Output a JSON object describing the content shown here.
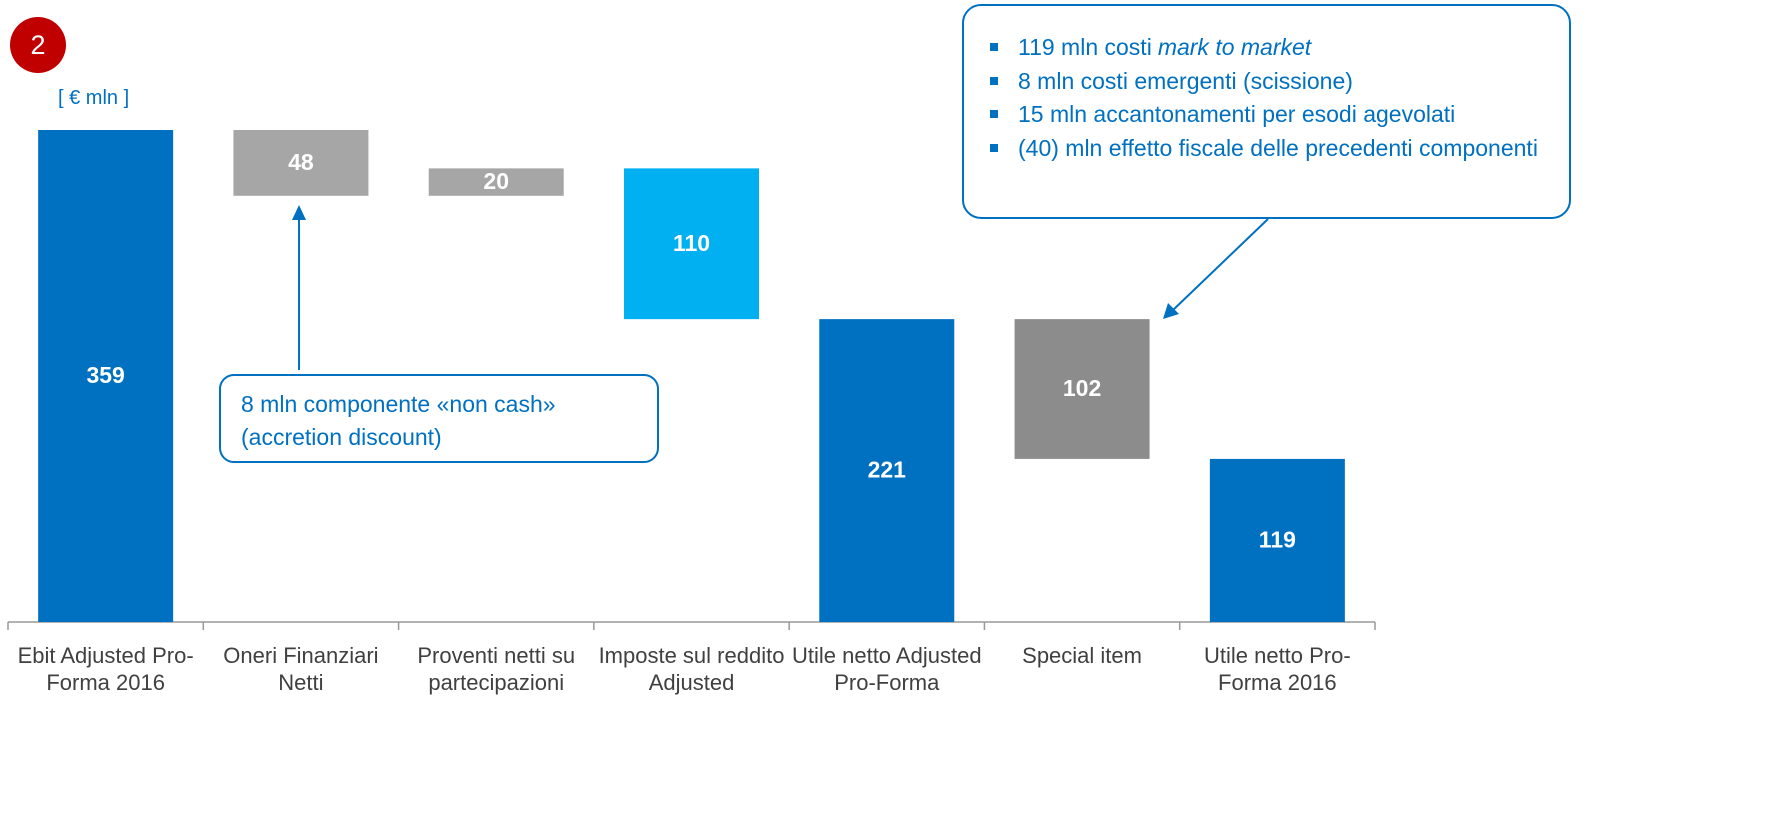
{
  "badge": "2",
  "unit_label": "[ € mln ]",
  "chart_data": {
    "type": "waterfall",
    "categories": [
      "Ebit Adjusted Pro-Forma 2016",
      "Oneri Finanziari Netti",
      "Proventi netti su partecipazioni",
      "Imposte sul reddito Adjusted",
      "Utile netto Adjusted Pro-Forma",
      "Special item",
      "Utile netto Pro-Forma 2016"
    ],
    "values": [
      359,
      48,
      20,
      110,
      221,
      102,
      119
    ],
    "kinds": [
      "total",
      "decrease",
      "increase",
      "decrease",
      "total",
      "decrease",
      "total"
    ],
    "colors": [
      "#0070c0",
      "#a6a6a6",
      "#a6a6a6",
      "#00b0f0",
      "#0070c0",
      "#8c8c8c",
      "#0070c0"
    ]
  },
  "callouts": [
    {
      "lines": [
        "8 mln componente «non cash»",
        "(accretion discount)"
      ]
    },
    {
      "items": [
        [
          "119 mln costi",
          "mark to market"
        ],
        [
          "8 mln costi emergenti (scissione)"
        ],
        [
          "15 mln accantonamenti per esodi agevolati"
        ],
        [
          "(40) mln effetto fiscale delle precedenti componenti"
        ]
      ]
    }
  ]
}
